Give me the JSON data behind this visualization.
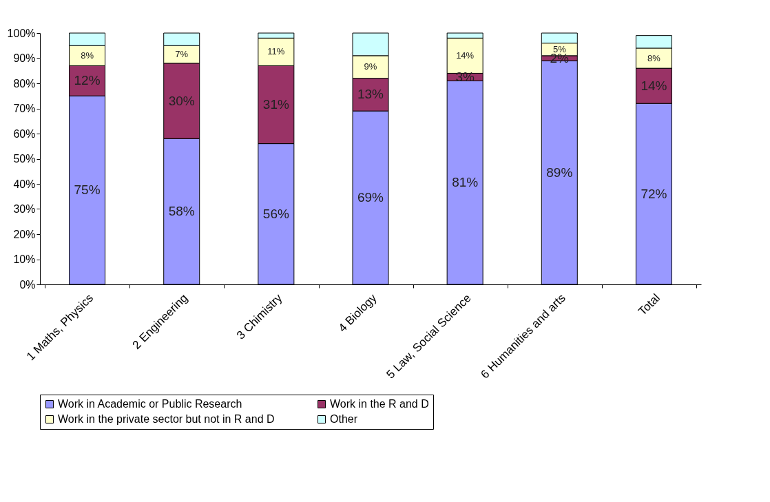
{
  "chart_data": {
    "type": "bar",
    "stacked": true,
    "categories": [
      "1 Maths, Physics",
      "2 Engineering",
      "3 Chimistry",
      "4 Biology",
      "5 Law, Social Science",
      "6 Humanities and arts",
      "Total"
    ],
    "series": [
      {
        "name": "Work in Academic or Public Research",
        "color": "#9999ff",
        "values": [
          75,
          58,
          56,
          69,
          81,
          89,
          72
        ],
        "value_labels": [
          "75%",
          "58%",
          "56%",
          "69%",
          "81%",
          "89%",
          "72%"
        ]
      },
      {
        "name": "Work in the R and D",
        "color": "#993366",
        "values": [
          12,
          30,
          31,
          13,
          3,
          2,
          14
        ],
        "value_labels": [
          "12%",
          "30%",
          "31%",
          "13%",
          "3%",
          "2%",
          "14%"
        ]
      },
      {
        "name": "Work in the private sector but not in R and D",
        "color": "#ffffcc",
        "values": [
          8,
          7,
          11,
          9,
          14,
          5,
          8
        ],
        "value_labels": [
          "8%",
          "7%",
          "11%",
          "9%",
          "14%",
          "5%",
          "8%"
        ]
      },
      {
        "name": "Other",
        "color": "#ccffff",
        "values": [
          5,
          5,
          2,
          9,
          2,
          4,
          5
        ]
      }
    ],
    "ylim": [
      0,
      100
    ],
    "yticks": [
      {
        "value": 0,
        "label": "0%"
      },
      {
        "value": 10,
        "label": "10%"
      },
      {
        "value": 20,
        "label": "20%"
      },
      {
        "value": 30,
        "label": "30%"
      },
      {
        "value": 40,
        "label": "40%"
      },
      {
        "value": 50,
        "label": "50%"
      },
      {
        "value": 60,
        "label": "60%"
      },
      {
        "value": 70,
        "label": "70%"
      },
      {
        "value": 80,
        "label": "80%"
      },
      {
        "value": 90,
        "label": "90%"
      },
      {
        "value": 100,
        "label": "100%"
      }
    ],
    "grid": false,
    "legend": "bottom"
  }
}
